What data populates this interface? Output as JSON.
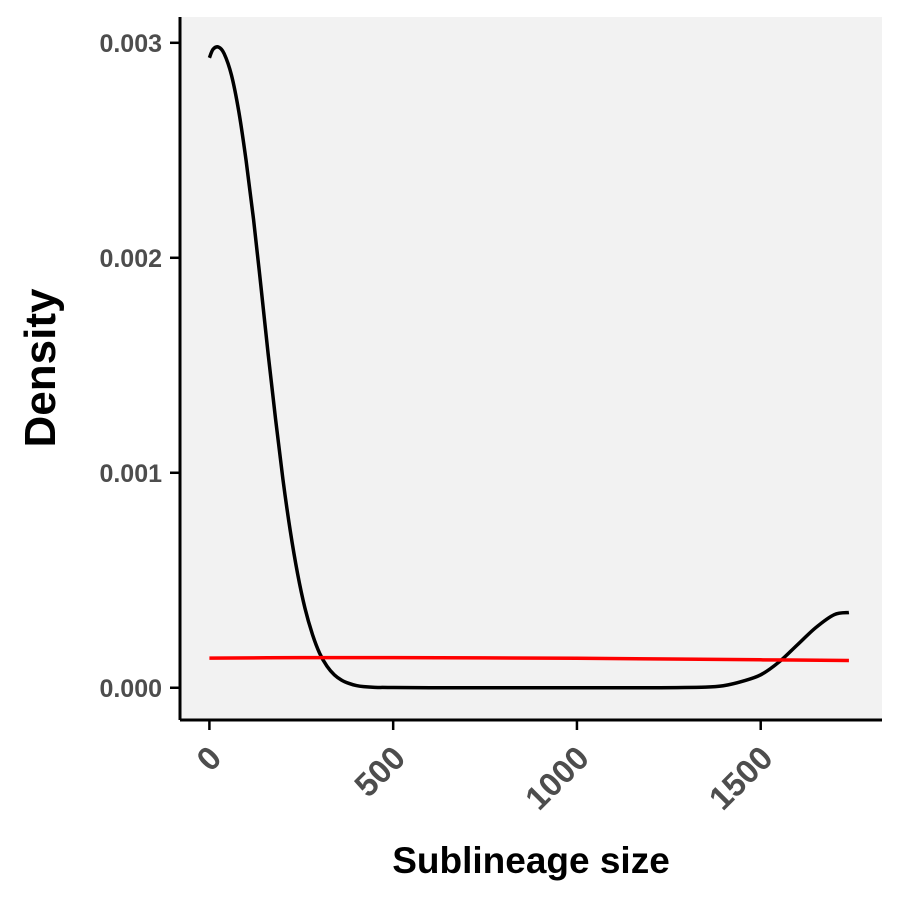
{
  "chart_data": {
    "type": "line",
    "title": "",
    "xlabel": "Sublineage size",
    "ylabel": "Density",
    "xlim": [
      -80,
      1830
    ],
    "ylim": [
      -0.00015,
      0.00312
    ],
    "x_ticks": [
      0,
      500,
      1000,
      1500
    ],
    "x_tick_labels": [
      "0",
      "500",
      "1000",
      "1500"
    ],
    "y_ticks": [
      0,
      0.001,
      0.002,
      0.003
    ],
    "y_tick_labels": [
      "0.000",
      "0.001",
      "0.002",
      "0.003"
    ],
    "grid": false,
    "legend": "none",
    "background_color": "#f2f2f2",
    "series": [
      {
        "color": "#000000",
        "x": [
          0,
          10,
          25,
          40,
          60,
          80,
          100,
          120,
          140,
          160,
          180,
          200,
          220,
          240,
          260,
          280,
          300,
          320,
          340,
          360,
          380,
          400,
          420,
          450,
          500,
          600,
          800,
          1000,
          1200,
          1350,
          1400,
          1450,
          1500,
          1550,
          1600,
          1650,
          1700,
          1740
        ],
        "y": [
          0.00293,
          0.00297,
          0.00298,
          0.00295,
          0.00285,
          0.00268,
          0.00245,
          0.00218,
          0.00187,
          0.00155,
          0.00125,
          0.00097,
          0.00073,
          0.00053,
          0.00037,
          0.00025,
          0.00016,
          0.0001,
          6e-05,
          3.5e-05,
          2e-05,
          1e-05,
          5e-06,
          2e-06,
          1e-06,
          0,
          0,
          0,
          0,
          3e-06,
          1e-05,
          3e-05,
          6e-05,
          0.00012,
          0.0002,
          0.00028,
          0.00034,
          0.00035
        ]
      },
      {
        "color": "#ff0000",
        "x": [
          0,
          250,
          500,
          750,
          1000,
          1250,
          1500,
          1740
        ],
        "y": [
          0.000138,
          0.00014,
          0.00014,
          0.000139,
          0.000137,
          0.000134,
          0.00013,
          0.000127
        ]
      }
    ]
  }
}
